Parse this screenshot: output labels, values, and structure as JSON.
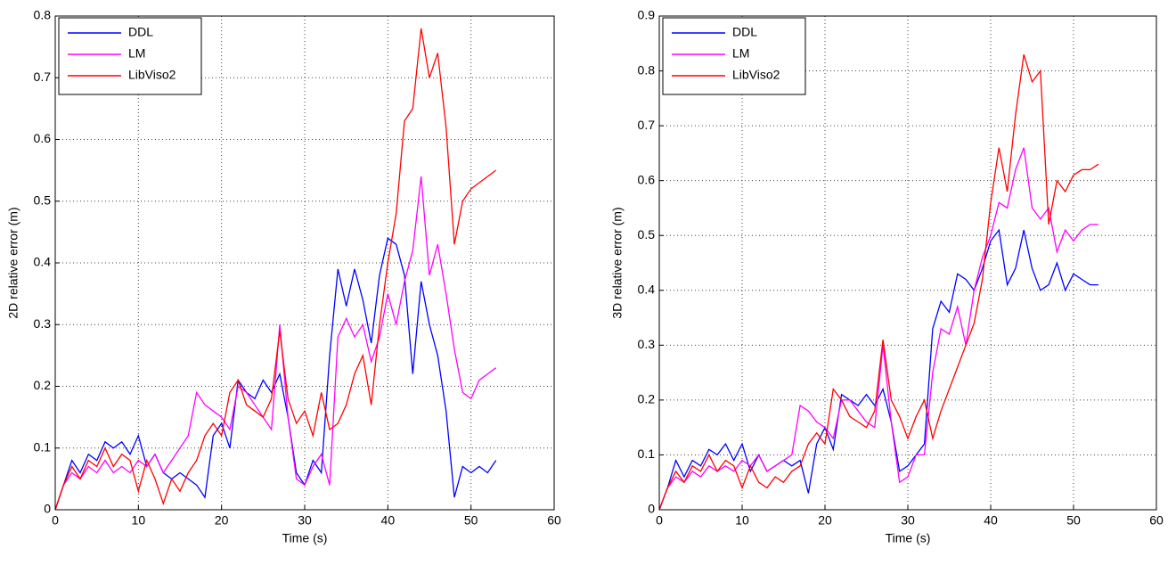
{
  "chart_data": [
    {
      "type": "line",
      "xlabel": "Time (s)",
      "ylabel": "2D relative error (m)",
      "x": [
        0,
        1,
        2,
        3,
        4,
        5,
        6,
        7,
        8,
        9,
        10,
        11,
        12,
        13,
        14,
        15,
        16,
        17,
        18,
        19,
        20,
        21,
        22,
        23,
        24,
        25,
        26,
        27,
        28,
        29,
        30,
        31,
        32,
        33,
        34,
        35,
        36,
        37,
        38,
        39,
        40,
        41,
        42,
        43,
        44,
        45,
        46,
        47,
        48,
        49,
        50,
        51,
        52,
        53
      ],
      "series": [
        {
          "name": "DDL",
          "color": "#0000ff",
          "values": [
            0,
            0.04,
            0.08,
            0.06,
            0.09,
            0.08,
            0.11,
            0.1,
            0.11,
            0.09,
            0.12,
            0.07,
            0.09,
            0.06,
            0.05,
            0.06,
            0.05,
            0.04,
            0.02,
            0.12,
            0.14,
            0.1,
            0.21,
            0.19,
            0.18,
            0.21,
            0.19,
            0.22,
            0.15,
            0.06,
            0.04,
            0.08,
            0.06,
            0.25,
            0.39,
            0.33,
            0.39,
            0.34,
            0.27,
            0.38,
            0.44,
            0.43,
            0.38,
            0.22,
            0.37,
            0.3,
            0.25,
            0.16,
            0.02,
            0.07,
            0.06,
            0.07,
            0.06,
            0.08
          ]
        },
        {
          "name": "LM",
          "color": "#ff00ff",
          "values": [
            0,
            0.04,
            0.06,
            0.05,
            0.07,
            0.06,
            0.08,
            0.06,
            0.07,
            0.06,
            0.08,
            0.07,
            0.09,
            0.06,
            0.08,
            0.1,
            0.12,
            0.19,
            0.17,
            0.16,
            0.15,
            0.13,
            0.2,
            0.19,
            0.17,
            0.15,
            0.13,
            0.3,
            0.15,
            0.05,
            0.04,
            0.07,
            0.09,
            0.04,
            0.28,
            0.31,
            0.28,
            0.3,
            0.24,
            0.28,
            0.35,
            0.3,
            0.37,
            0.42,
            0.54,
            0.38,
            0.43,
            0.35,
            0.26,
            0.19,
            0.18,
            0.21,
            0.22,
            0.23
          ]
        },
        {
          "name": "LibViso2",
          "color": "#ff0000",
          "values": [
            0,
            0.04,
            0.07,
            0.05,
            0.08,
            0.07,
            0.1,
            0.07,
            0.09,
            0.08,
            0.03,
            0.08,
            0.05,
            0.01,
            0.05,
            0.03,
            0.06,
            0.08,
            0.12,
            0.14,
            0.12,
            0.19,
            0.21,
            0.17,
            0.16,
            0.15,
            0.18,
            0.29,
            0.18,
            0.14,
            0.16,
            0.12,
            0.19,
            0.13,
            0.14,
            0.17,
            0.22,
            0.25,
            0.17,
            0.3,
            0.4,
            0.48,
            0.63,
            0.65,
            0.78,
            0.7,
            0.74,
            0.62,
            0.43,
            0.5,
            0.52,
            0.53,
            0.54,
            0.55
          ]
        }
      ],
      "xlim": [
        0,
        60
      ],
      "xticks": [
        0,
        10,
        20,
        30,
        40,
        50,
        60
      ],
      "ylim": [
        0,
        0.8
      ],
      "yticks": [
        0,
        0.1,
        0.2,
        0.3,
        0.4,
        0.5,
        0.6,
        0.7,
        0.8
      ],
      "grid": true,
      "legend": "upper-left"
    },
    {
      "type": "line",
      "xlabel": "Time (s)",
      "ylabel": "3D relative error (m)",
      "x": [
        0,
        1,
        2,
        3,
        4,
        5,
        6,
        7,
        8,
        9,
        10,
        11,
        12,
        13,
        14,
        15,
        16,
        17,
        18,
        19,
        20,
        21,
        22,
        23,
        24,
        25,
        26,
        27,
        28,
        29,
        30,
        31,
        32,
        33,
        34,
        35,
        36,
        37,
        38,
        39,
        40,
        41,
        42,
        43,
        44,
        45,
        46,
        47,
        48,
        49,
        50,
        51,
        52,
        53
      ],
      "series": [
        {
          "name": "DDL",
          "color": "#0000ff",
          "values": [
            0,
            0.04,
            0.09,
            0.06,
            0.09,
            0.08,
            0.11,
            0.1,
            0.12,
            0.09,
            0.12,
            0.07,
            0.1,
            0.07,
            0.08,
            0.09,
            0.08,
            0.09,
            0.03,
            0.12,
            0.15,
            0.11,
            0.21,
            0.2,
            0.19,
            0.21,
            0.19,
            0.22,
            0.16,
            0.07,
            0.08,
            0.1,
            0.12,
            0.33,
            0.38,
            0.36,
            0.43,
            0.42,
            0.4,
            0.44,
            0.49,
            0.51,
            0.41,
            0.44,
            0.51,
            0.44,
            0.4,
            0.41,
            0.45,
            0.4,
            0.43,
            0.42,
            0.41,
            0.41
          ]
        },
        {
          "name": "LM",
          "color": "#ff00ff",
          "values": [
            0,
            0.04,
            0.06,
            0.05,
            0.07,
            0.06,
            0.08,
            0.07,
            0.08,
            0.07,
            0.09,
            0.08,
            0.1,
            0.07,
            0.08,
            0.09,
            0.1,
            0.19,
            0.18,
            0.16,
            0.15,
            0.13,
            0.2,
            0.2,
            0.18,
            0.16,
            0.15,
            0.3,
            0.16,
            0.05,
            0.06,
            0.1,
            0.1,
            0.25,
            0.33,
            0.32,
            0.37,
            0.3,
            0.4,
            0.46,
            0.5,
            0.56,
            0.55,
            0.62,
            0.66,
            0.55,
            0.53,
            0.55,
            0.47,
            0.51,
            0.49,
            0.51,
            0.52,
            0.52
          ]
        },
        {
          "name": "LibViso2",
          "color": "#ff0000",
          "values": [
            0,
            0.04,
            0.07,
            0.05,
            0.08,
            0.07,
            0.1,
            0.07,
            0.09,
            0.08,
            0.04,
            0.08,
            0.05,
            0.04,
            0.06,
            0.05,
            0.07,
            0.08,
            0.12,
            0.14,
            0.12,
            0.22,
            0.2,
            0.17,
            0.16,
            0.15,
            0.18,
            0.31,
            0.2,
            0.17,
            0.13,
            0.17,
            0.2,
            0.13,
            0.18,
            0.22,
            0.26,
            0.3,
            0.34,
            0.42,
            0.56,
            0.66,
            0.58,
            0.72,
            0.83,
            0.78,
            0.8,
            0.52,
            0.6,
            0.58,
            0.61,
            0.62,
            0.62,
            0.63
          ]
        }
      ],
      "xlim": [
        0,
        60
      ],
      "xticks": [
        0,
        10,
        20,
        30,
        40,
        50,
        60
      ],
      "ylim": [
        0,
        0.9
      ],
      "yticks": [
        0,
        0.1,
        0.2,
        0.3,
        0.4,
        0.5,
        0.6,
        0.7,
        0.8,
        0.9
      ],
      "grid": true,
      "legend": "upper-left"
    }
  ]
}
